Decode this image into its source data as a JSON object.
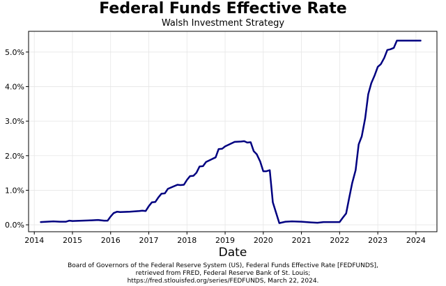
{
  "chart_data": {
    "type": "line",
    "title": "Federal Funds Effective Rate",
    "subtitle": "Walsh Investment Strategy",
    "xlabel": "Date",
    "ylabel": "",
    "xlim": [
      2013.85,
      2024.55
    ],
    "ylim": [
      -0.2,
      5.6
    ],
    "grid": true,
    "line_color": "#000080",
    "x_ticks": [
      2014,
      2015,
      2016,
      2017,
      2018,
      2019,
      2020,
      2021,
      2022,
      2023,
      2024
    ],
    "x_tick_labels": [
      "2014",
      "2015",
      "2016",
      "2017",
      "2018",
      "2019",
      "2020",
      "2021",
      "2022",
      "2023",
      "2024"
    ],
    "y_ticks": [
      0,
      1,
      2,
      3,
      4,
      5
    ],
    "y_tick_labels": [
      "0.0%",
      "1.0%",
      "2.0%",
      "3.0%",
      "4.0%",
      "5.0%"
    ],
    "series": [
      {
        "x": [
          2014.17,
          2014.33,
          2014.5,
          2014.67,
          2014.83,
          2014.92,
          2015.0,
          2015.25,
          2015.5,
          2015.67,
          2015.83,
          2015.92,
          2016.0,
          2016.08,
          2016.17,
          2016.25,
          2016.5,
          2016.75,
          2016.83,
          2016.92,
          2017.0,
          2017.08,
          2017.17,
          2017.25,
          2017.33,
          2017.42,
          2017.5,
          2017.75,
          2017.83,
          2017.92,
          2018.0,
          2018.08,
          2018.17,
          2018.25,
          2018.33,
          2018.42,
          2018.5,
          2018.67,
          2018.75,
          2018.83,
          2018.92,
          2019.0,
          2019.25,
          2019.42,
          2019.5,
          2019.58,
          2019.67,
          2019.75,
          2019.83,
          2019.92,
          2020.0,
          2020.08,
          2020.17,
          2020.25,
          2020.42,
          2020.58,
          2020.75,
          2021.0,
          2021.25,
          2021.42,
          2021.58,
          2021.75,
          2022.0,
          2022.08,
          2022.17,
          2022.25,
          2022.33,
          2022.42,
          2022.5,
          2022.58,
          2022.67,
          2022.75,
          2022.83,
          2022.92,
          2023.0,
          2023.08,
          2023.17,
          2023.25,
          2023.33,
          2023.42,
          2023.5,
          2023.58,
          2023.67,
          2023.75,
          2024.0,
          2024.12
        ],
        "y": [
          0.08,
          0.09,
          0.1,
          0.09,
          0.09,
          0.12,
          0.11,
          0.12,
          0.13,
          0.14,
          0.12,
          0.12,
          0.24,
          0.34,
          0.38,
          0.37,
          0.38,
          0.4,
          0.41,
          0.4,
          0.54,
          0.65,
          0.66,
          0.79,
          0.9,
          0.91,
          1.04,
          1.16,
          1.15,
          1.16,
          1.3,
          1.41,
          1.42,
          1.51,
          1.69,
          1.7,
          1.82,
          1.91,
          1.95,
          2.19,
          2.2,
          2.27,
          2.4,
          2.41,
          2.42,
          2.38,
          2.39,
          2.13,
          2.04,
          1.83,
          1.55,
          1.55,
          1.58,
          0.65,
          0.05,
          0.09,
          0.1,
          0.09,
          0.07,
          0.06,
          0.08,
          0.08,
          0.08,
          0.2,
          0.33,
          0.77,
          1.21,
          1.58,
          2.33,
          2.56,
          3.08,
          3.78,
          4.1,
          4.33,
          4.57,
          4.65,
          4.83,
          5.06,
          5.08,
          5.12,
          5.33,
          5.33,
          5.33,
          5.33,
          5.33,
          5.33
        ]
      }
    ]
  },
  "footer": "Board of Governors of the Federal Reserve System (US), Federal Funds Effective Rate [FEDFUNDS], retrieved from FRED, Federal Reserve Bank of St. Louis; https://fred.stlouisfed.org/series/FEDFUNDS, March 22, 2024."
}
